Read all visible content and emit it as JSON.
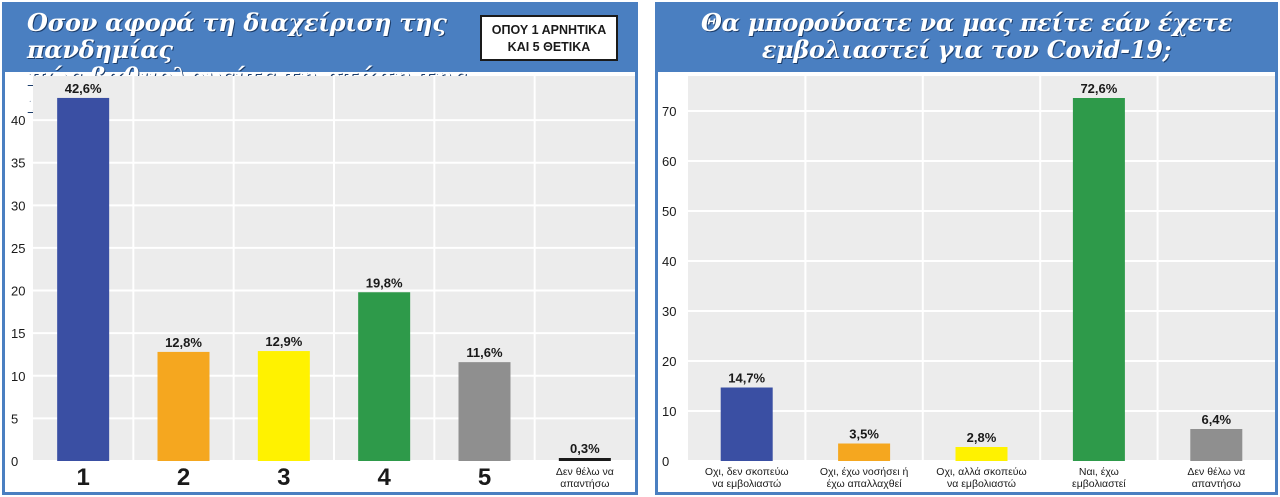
{
  "colors": {
    "header": "#4a7fc1",
    "blue": "#3a4fa3",
    "orange": "#f5a71f",
    "yellow": "#fff200",
    "green": "#2e9a4a",
    "gray": "#8f8f8f",
    "black": "#1a1a1a",
    "plot_bg": "#ececec",
    "grid": "#ffffff"
  },
  "left": {
    "title": "Οσον αφορά τη διαχείριση της πανδημίας\nπώς βαθμολογείτε τη στάση της κυβέρνησης;",
    "note": "ΟΠΟΥ 1 ΑΡΝΗΤΙΚΑ\nΚΑΙ 5 ΘΕΤΙΚΑ"
  },
  "right": {
    "title": "Θα μπορούσατε να μας πείτε εάν έχετε\nεμβολιαστεί για τον Covid-19;"
  },
  "chart_data": [
    {
      "type": "bar",
      "title": "Οσον αφορά τη διαχείριση της πανδημίας πώς βαθμολογείτε τη στάση της κυβέρνησης;",
      "categories": [
        "1",
        "2",
        "3",
        "4",
        "5",
        "Δεν θέλω να απαντήσω"
      ],
      "category_display": [
        [
          "1"
        ],
        [
          "2"
        ],
        [
          "3"
        ],
        [
          "4"
        ],
        [
          "5"
        ],
        [
          "Δεν θέλω να",
          "απαντήσω"
        ]
      ],
      "category_style": [
        "big",
        "big",
        "big",
        "big",
        "big",
        "small"
      ],
      "values": [
        42.6,
        12.8,
        12.9,
        19.8,
        11.6,
        0.3
      ],
      "labels": [
        "42,6%",
        "12,8%",
        "12,9%",
        "19,8%",
        "11,6%",
        "0,3%"
      ],
      "bar_colors": [
        "blue",
        "orange",
        "yellow",
        "green",
        "gray",
        "black"
      ],
      "ylim": [
        0,
        44
      ],
      "yticks": [
        0,
        5,
        10,
        15,
        20,
        25,
        30,
        35,
        40
      ],
      "grid": true,
      "xlabel": "",
      "ylabel": ""
    },
    {
      "type": "bar",
      "title": "Θα μπορούσατε να μας πείτε εάν έχετε εμβολιαστεί για τον Covid-19;",
      "categories": [
        "Οχι, δεν σκοπεύω να εμβολιαστώ",
        "Οχι, έχω νοσήσει ή έχω απαλλαχθεί",
        "Οχι, αλλά σκοπεύω να εμβολιαστώ",
        "Ναι, έχω εμβολιαστεί",
        "Δεν θέλω να απαντήσω"
      ],
      "category_display": [
        [
          "Οχι, δεν σκοπεύω",
          "να εμβολιαστώ"
        ],
        [
          "Οχι, έχω νοσήσει ή",
          "έχω απαλλαχθεί"
        ],
        [
          "Οχι, αλλά σκοπεύω",
          "να εμβολιαστώ"
        ],
        [
          "Ναι, έχω",
          "εμβολιαστεί"
        ],
        [
          "Δεν θέλω να",
          "απαντήσω"
        ]
      ],
      "category_style": [
        "small",
        "small",
        "small",
        "small",
        "small"
      ],
      "values": [
        14.7,
        3.5,
        2.8,
        72.6,
        6.4
      ],
      "labels": [
        "14,7%",
        "3,5%",
        "2,8%",
        "72,6%",
        "6,4%"
      ],
      "bar_colors": [
        "blue",
        "orange",
        "yellow",
        "green",
        "gray"
      ],
      "ylim": [
        0,
        75
      ],
      "yticks": [
        0,
        10,
        20,
        30,
        40,
        50,
        60,
        70
      ],
      "grid": true,
      "xlabel": "",
      "ylabel": ""
    }
  ]
}
